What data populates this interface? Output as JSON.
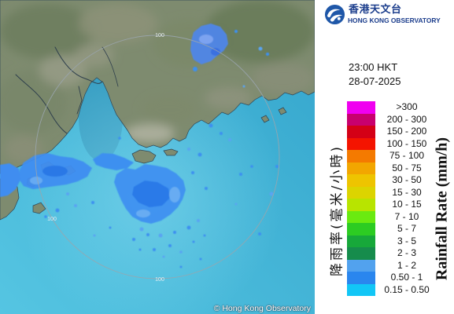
{
  "logo": {
    "chinese_name": "香港天文台",
    "english_name": "HONG KONG OBSERVATORY",
    "emblem_icon": "hko-emblem-icon",
    "brand_color": "#1b3d8c"
  },
  "timestamp": {
    "time": "23:00 HKT",
    "date": "28-07-2025"
  },
  "legend": {
    "title_chinese": "降雨率(毫米/小時)",
    "title_english": "Rainfall Rate (mm/h)",
    "items": [
      {
        "label": ">300",
        "color": "#f000f0"
      },
      {
        "label": "200 - 300",
        "color": "#c8006e"
      },
      {
        "label": "150 - 200",
        "color": "#d40016"
      },
      {
        "label": "100 - 150",
        "color": "#f41400"
      },
      {
        "label": "75 - 100",
        "color": "#f47a00"
      },
      {
        "label": "50 - 75",
        "color": "#f2a600"
      },
      {
        "label": "30 - 50",
        "color": "#eec400"
      },
      {
        "label": "15 - 30",
        "color": "#dcd400"
      },
      {
        "label": "10 - 15",
        "color": "#b8e400"
      },
      {
        "label": "7 - 10",
        "color": "#6aea10"
      },
      {
        "label": "5 - 7",
        "color": "#2ccc22"
      },
      {
        "label": "3 - 5",
        "color": "#17a83a"
      },
      {
        "label": "2 - 3",
        "color": "#168c4c"
      },
      {
        "label": "1 - 2",
        "color": "#52a2ee"
      },
      {
        "label": "0.50 - 1",
        "color": "#2a86ee"
      },
      {
        "label": "0.15 - 0.50",
        "color": "#12c6f6"
      }
    ]
  },
  "map": {
    "range_ring_label": "100",
    "copyright": "© Hong Kong Observatory"
  }
}
